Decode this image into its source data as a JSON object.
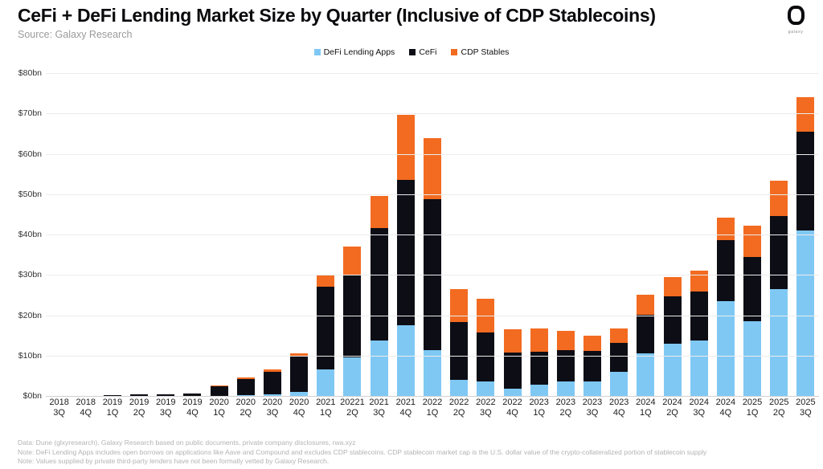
{
  "header": {
    "title": "CeFi + DeFi Lending Market Size by Quarter (Inclusive of CDP Stablecoins)",
    "source": "Source: Galaxy Research",
    "logo_text": "galaxy"
  },
  "colors": {
    "defi": "#7fc8f4",
    "cefi": "#0d0d15",
    "cdp": "#f26b21",
    "gridline": "#ececec",
    "baseline": "#cfcfcf"
  },
  "legend": [
    {
      "name": "defi-swatch",
      "label": "DeFi Lending Apps",
      "color": "#7fc8f4"
    },
    {
      "name": "cefi-swatch",
      "label": "CeFi",
      "color": "#0d0d15"
    },
    {
      "name": "cdp-swatch",
      "label": "CDP Stables",
      "color": "#f26b21"
    }
  ],
  "chart_data": {
    "type": "bar",
    "stacked": true,
    "title": "CeFi + DeFi Lending Market Size by Quarter (Inclusive of CDP Stablecoins)",
    "xlabel": "",
    "ylabel": "",
    "ylim": [
      0,
      80
    ],
    "grid": true,
    "legend_position": "top-center",
    "ytick_labels": [
      "$80bn",
      "$70bn",
      "$60bn",
      "$50bn",
      "$40bn",
      "$30bn",
      "$20bn",
      "$10bn",
      "$0bn"
    ],
    "categories_year": [
      "2018",
      "2018",
      "2019",
      "2019",
      "2019",
      "2019",
      "2020",
      "2020",
      "2020",
      "2020",
      "2021",
      "20221",
      "2021",
      "2021",
      "2022",
      "2022",
      "2022",
      "2022",
      "2023",
      "2023",
      "2023",
      "2023",
      "2024",
      "2024",
      "2024",
      "2024",
      "2025",
      "2025",
      "2025"
    ],
    "categories_quarter": [
      "3Q",
      "4Q",
      "1Q",
      "2Q",
      "3Q",
      "4Q",
      "1Q",
      "2Q",
      "3Q",
      "4Q",
      "1Q",
      "2Q",
      "3Q",
      "4Q",
      "1Q",
      "2Q",
      "3Q",
      "4Q",
      "1Q",
      "2Q",
      "3Q",
      "4Q",
      "1Q",
      "2Q",
      "3Q",
      "4Q",
      "1Q",
      "2Q",
      "3Q"
    ],
    "units": "US$ billions",
    "series": [
      {
        "name": "DeFi Lending Apps",
        "color": "#7fc8f4",
        "values": [
          0,
          0,
          0,
          0.05,
          0.05,
          0.1,
          0.1,
          0.2,
          0.4,
          1.0,
          6.5,
          9.5,
          13.8,
          17.6,
          11.3,
          3.9,
          3.6,
          1.8,
          2.8,
          3.6,
          3.6,
          5.9,
          10.5,
          13.0,
          13.8,
          23.5,
          18.5,
          26.5,
          41.0
        ]
      },
      {
        "name": "CeFi",
        "color": "#0d0d15",
        "values": [
          0.05,
          0.1,
          0.2,
          0.45,
          0.35,
          0.5,
          2.3,
          4.0,
          5.6,
          8.8,
          20.5,
          20.5,
          27.7,
          36.0,
          37.5,
          14.5,
          12.2,
          8.9,
          8.1,
          7.8,
          7.5,
          7.3,
          9.6,
          11.7,
          12.0,
          15.1,
          15.9,
          18.0,
          24.5
        ]
      },
      {
        "name": "CDP Stables",
        "color": "#f26b21",
        "values": [
          0,
          0,
          0,
          0,
          0,
          0.05,
          0.1,
          0.3,
          0.5,
          0.8,
          3.0,
          7.0,
          8.0,
          16.0,
          15.0,
          8.0,
          8.2,
          5.9,
          5.8,
          4.8,
          3.8,
          3.6,
          4.9,
          4.7,
          5.2,
          5.5,
          7.7,
          8.8,
          8.5
        ]
      }
    ]
  },
  "footer": {
    "lines": [
      "Data: Dune (glxyresearch), Galaxy Research based on public documents, private company disclosures, rwa.xyz",
      "Note: DeFi Lending Apps includes open borrows on applications like Aave and Compound and excludes CDP stablecoins. CDP stablecoin market cap is the U.S. dollar value of the crypto-collateralized portion of stablecoin supply",
      "Note: Values supplied by private third-party lenders have not been formally vetted by Galaxy Research."
    ]
  }
}
